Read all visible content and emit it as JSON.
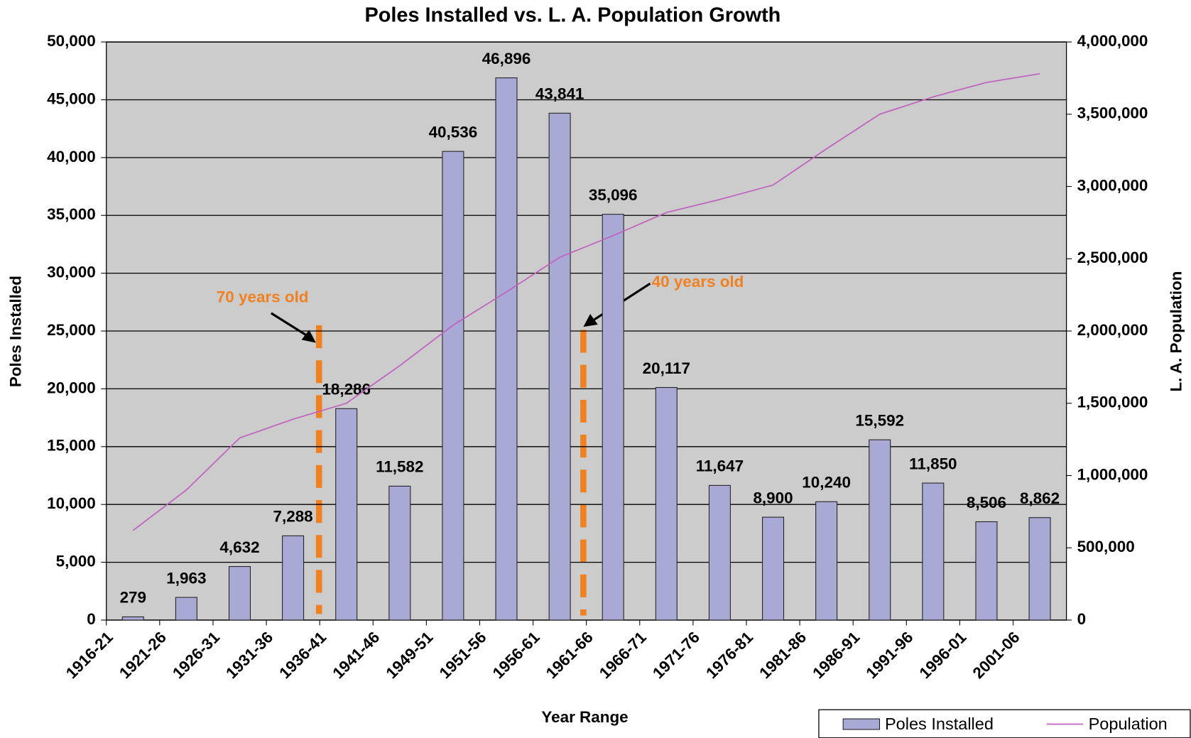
{
  "chart_data": {
    "type": "bar",
    "title": "Poles Installed vs. L. A. Population Growth",
    "x_label": "Year Range",
    "y_label": "Poles Installed",
    "y2_label": "L. A. Population",
    "categories": [
      "1916-21",
      "1921-26",
      "1926-31",
      "1931-36",
      "1936-41",
      "1941-46",
      "1949-51",
      "1951-56",
      "1956-61",
      "1961-66",
      "1966-71",
      "1971-76",
      "1976-81",
      "1981-86",
      "1986-91",
      "1991-96",
      "1996-01",
      "2001-06"
    ],
    "series": [
      {
        "name": "Poles Installed",
        "type": "bar",
        "color": "#a9a9d6",
        "values": [
          279,
          1963,
          4632,
          7288,
          18286,
          11582,
          40536,
          46896,
          43841,
          35096,
          20117,
          11647,
          8900,
          10240,
          15592,
          11850,
          8506,
          8862
        ],
        "value_labels": [
          "279",
          "1,963",
          "4,632",
          "7,288",
          "18,286",
          "11,582",
          "40,536",
          "46,896",
          "43,841",
          "35,096",
          "20,117",
          "11,647",
          "8,900",
          "10,240",
          "15,592",
          "11,850",
          "8,506",
          "8,862"
        ]
      },
      {
        "name": "Population",
        "type": "line",
        "axis": "y2",
        "color": "#c060c0",
        "values": [
          620000,
          900000,
          1260000,
          1390000,
          1500000,
          1760000,
          2040000,
          2270000,
          2510000,
          2660000,
          2820000,
          2910000,
          3010000,
          3260000,
          3500000,
          3620000,
          3720000,
          3780000
        ]
      }
    ],
    "ylim": [
      0,
      50000
    ],
    "yticks": [
      0,
      {
        "value": 5000,
        "label": "5,000"
      },
      {
        "value": 10000,
        "label": "10,000"
      },
      {
        "value": 15000,
        "label": "15,000"
      },
      {
        "value": 20000,
        "label": "20,000"
      },
      {
        "value": 25000,
        "label": "25,000"
      },
      {
        "value": 30000,
        "label": "30,000"
      },
      {
        "value": 35000,
        "label": "35,000"
      },
      {
        "value": 40000,
        "label": "40,000"
      },
      {
        "value": 45000,
        "label": "45,000"
      },
      {
        "value": 50000,
        "label": "50,000"
      }
    ],
    "y2lim": [
      0,
      4000000
    ],
    "y2ticks": [
      0,
      {
        "value": 500000,
        "label": "500,000"
      },
      {
        "value": 1000000,
        "label": "1,000,000"
      },
      {
        "value": 1500000,
        "label": "1,500,000"
      },
      {
        "value": 2000000,
        "label": "2,000,000"
      },
      {
        "value": 2500000,
        "label": "2,500,000"
      },
      {
        "value": 3000000,
        "label": "3,000,000"
      },
      {
        "value": 3500000,
        "label": "3,500,000"
      },
      {
        "value": 4000000,
        "label": "4,000,000"
      }
    ],
    "grid": true,
    "legend": "bottom-right",
    "annotations": [
      {
        "text": "70 years old",
        "color": "#f08020"
      },
      {
        "text": "40 years old",
        "color": "#f08020"
      }
    ]
  }
}
